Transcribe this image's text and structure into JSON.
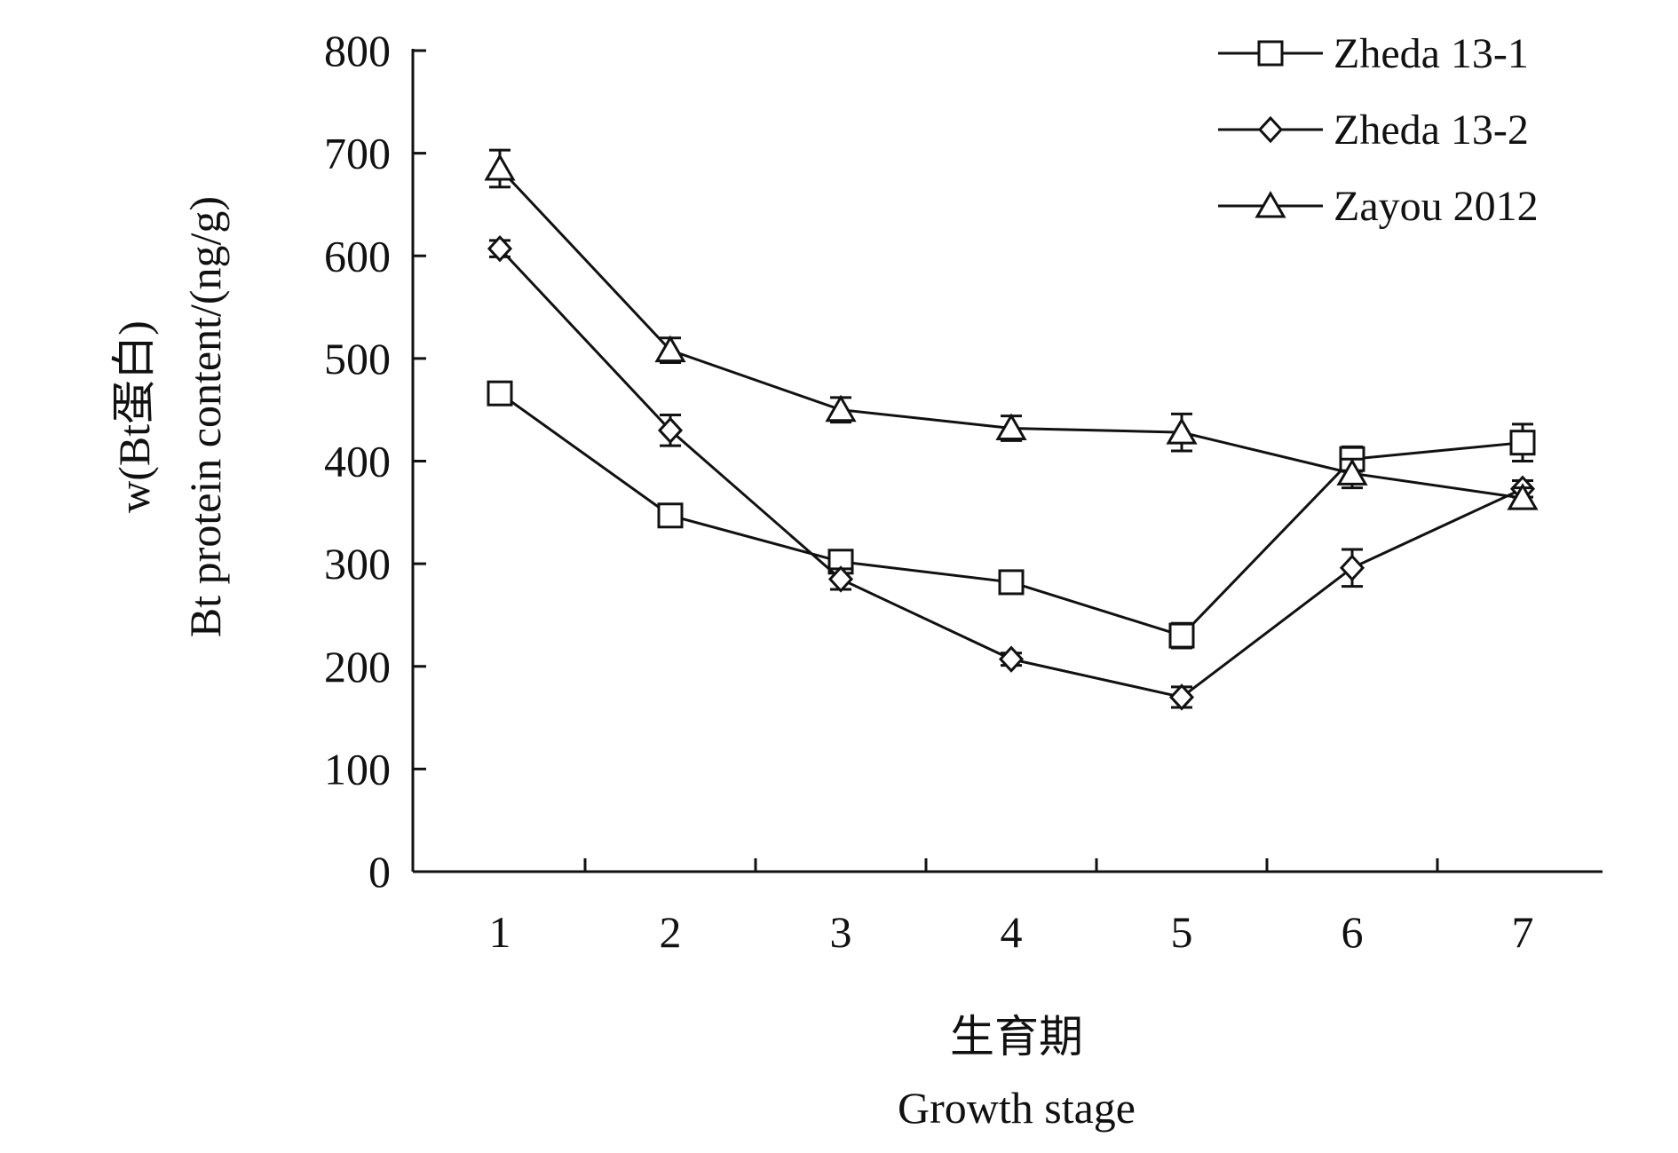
{
  "chart_data": {
    "type": "line",
    "x": [
      1,
      2,
      3,
      4,
      5,
      6,
      7
    ],
    "xlabel_lines": [
      "生育期",
      "Growth stage"
    ],
    "ylabel_lines": [
      "w(Bt蛋白)",
      "Bt protein content/(ng/g)"
    ],
    "ylim": [
      0,
      800
    ],
    "yticks": [
      0,
      100,
      200,
      300,
      400,
      500,
      600,
      700,
      800
    ],
    "xticks": [
      1,
      2,
      3,
      4,
      5,
      6,
      7
    ],
    "grid": false,
    "legend_position": "top-right",
    "series": [
      {
        "name": "Zheda 13-1",
        "marker": "square",
        "values": [
          466,
          347,
          302,
          282,
          230,
          402,
          418
        ],
        "errors": [
          10,
          10,
          10,
          10,
          12,
          12,
          18
        ]
      },
      {
        "name": "Zheda 13-2",
        "marker": "diamond",
        "values": [
          607,
          430,
          285,
          207,
          170,
          296,
          373
        ],
        "errors": [
          8,
          15,
          10,
          6,
          10,
          18,
          8
        ]
      },
      {
        "name": "Zayou 2012",
        "marker": "triangle",
        "values": [
          685,
          508,
          450,
          432,
          428,
          388,
          364
        ],
        "errors": [
          18,
          12,
          12,
          12,
          18,
          14,
          10
        ]
      }
    ]
  },
  "colors": {
    "ink": "#111111",
    "background": "#ffffff"
  }
}
